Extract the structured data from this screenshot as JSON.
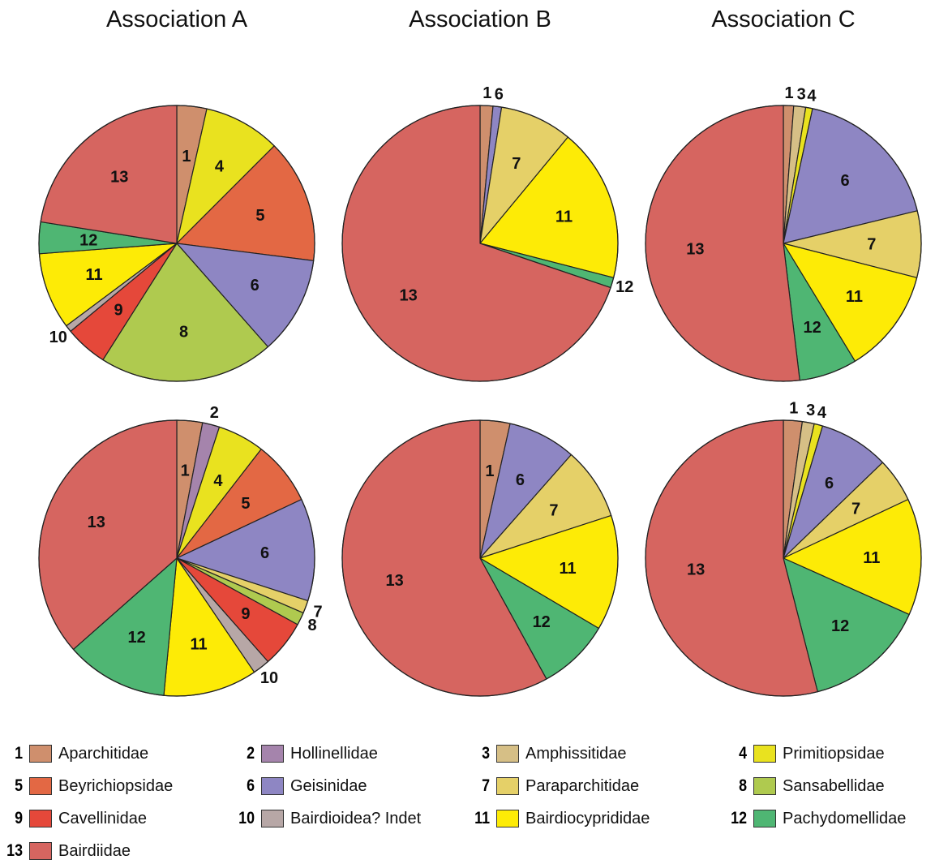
{
  "titles": [
    "Association A",
    "Association B",
    "Association C"
  ],
  "colors": {
    "1": "#cf8f6d",
    "2": "#a584ac",
    "3": "#d6bf86",
    "4": "#e9e21f",
    "5": "#e36844",
    "6": "#8e86c3",
    "7": "#e5d068",
    "8": "#afca4f",
    "9": "#e5483a",
    "10": "#b7a7a6",
    "11": "#fdeb06",
    "12": "#4fb673",
    "13": "#d66560"
  },
  "legend": [
    {
      "num": "1",
      "label": "Aparchitidae"
    },
    {
      "num": "2",
      "label": "Hollinellidae"
    },
    {
      "num": "3",
      "label": "Amphissitidae"
    },
    {
      "num": "4",
      "label": "Primitiopsidae"
    },
    {
      "num": "5",
      "label": "Beyrichiopsidae"
    },
    {
      "num": "6",
      "label": "Geisinidae"
    },
    {
      "num": "7",
      "label": "Paraparchitidae"
    },
    {
      "num": "8",
      "label": "Sansabellidae"
    },
    {
      "num": "9",
      "label": "Cavellinidae"
    },
    {
      "num": "10",
      "label": "Bairdioidea? Indet"
    },
    {
      "num": "11",
      "label": "Bairdiocyprididae"
    },
    {
      "num": "12",
      "label": "Pachydomellidae"
    },
    {
      "num": "13",
      "label": "Bairdiidae"
    }
  ],
  "chart_data": [
    {
      "type": "pie",
      "column": "Association A",
      "row": "top",
      "slices": [
        {
          "category": "1",
          "value": 3.5
        },
        {
          "category": "4",
          "value": 9.0
        },
        {
          "category": "5",
          "value": 14.5
        },
        {
          "category": "6",
          "value": 11.5
        },
        {
          "category": "8",
          "value": 20.5
        },
        {
          "category": "9",
          "value": 5.0
        },
        {
          "category": "10",
          "value": 0.8
        },
        {
          "category": "11",
          "value": 9.0
        },
        {
          "category": "12",
          "value": 3.7
        },
        {
          "category": "13",
          "value": 22.5
        }
      ]
    },
    {
      "type": "pie",
      "column": "Association B",
      "row": "top",
      "slices": [
        {
          "category": "1",
          "value": 1.5
        },
        {
          "category": "6",
          "value": 1.0
        },
        {
          "category": "7",
          "value": 8.5
        },
        {
          "category": "11",
          "value": 18.0
        },
        {
          "category": "12",
          "value": 1.2
        },
        {
          "category": "13",
          "value": 69.8
        }
      ]
    },
    {
      "type": "pie",
      "column": "Association C",
      "row": "top",
      "slices": [
        {
          "category": "1",
          "value": 1.2
        },
        {
          "category": "3",
          "value": 1.4
        },
        {
          "category": "4",
          "value": 0.8
        },
        {
          "category": "6",
          "value": 17.8
        },
        {
          "category": "7",
          "value": 7.8
        },
        {
          "category": "11",
          "value": 12.3
        },
        {
          "category": "12",
          "value": 6.8
        },
        {
          "category": "13",
          "value": 51.9
        }
      ]
    },
    {
      "type": "pie",
      "column": "Association A",
      "row": "bottom",
      "slices": [
        {
          "category": "1",
          "value": 3.0
        },
        {
          "category": "2",
          "value": 2.0
        },
        {
          "category": "4",
          "value": 5.5
        },
        {
          "category": "5",
          "value": 7.5
        },
        {
          "category": "6",
          "value": 12.0
        },
        {
          "category": "7",
          "value": 1.5
        },
        {
          "category": "8",
          "value": 1.5
        },
        {
          "category": "9",
          "value": 5.5
        },
        {
          "category": "10",
          "value": 2.0
        },
        {
          "category": "11",
          "value": 11.0
        },
        {
          "category": "12",
          "value": 12.0
        },
        {
          "category": "13",
          "value": 36.5
        }
      ]
    },
    {
      "type": "pie",
      "column": "Association B",
      "row": "bottom",
      "slices": [
        {
          "category": "1",
          "value": 3.5
        },
        {
          "category": "6",
          "value": 8.0
        },
        {
          "category": "7",
          "value": 8.5
        },
        {
          "category": "11",
          "value": 13.5
        },
        {
          "category": "12",
          "value": 8.5
        },
        {
          "category": "13",
          "value": 58.0
        }
      ]
    },
    {
      "type": "pie",
      "column": "Association C",
      "row": "bottom",
      "slices": [
        {
          "category": "1",
          "value": 2.2
        },
        {
          "category": "3",
          "value": 1.4
        },
        {
          "category": "4",
          "value": 1.0
        },
        {
          "category": "6",
          "value": 8.2
        },
        {
          "category": "7",
          "value": 5.2
        },
        {
          "category": "11",
          "value": 13.7
        },
        {
          "category": "12",
          "value": 14.3
        },
        {
          "category": "13",
          "value": 54.0
        }
      ]
    }
  ]
}
